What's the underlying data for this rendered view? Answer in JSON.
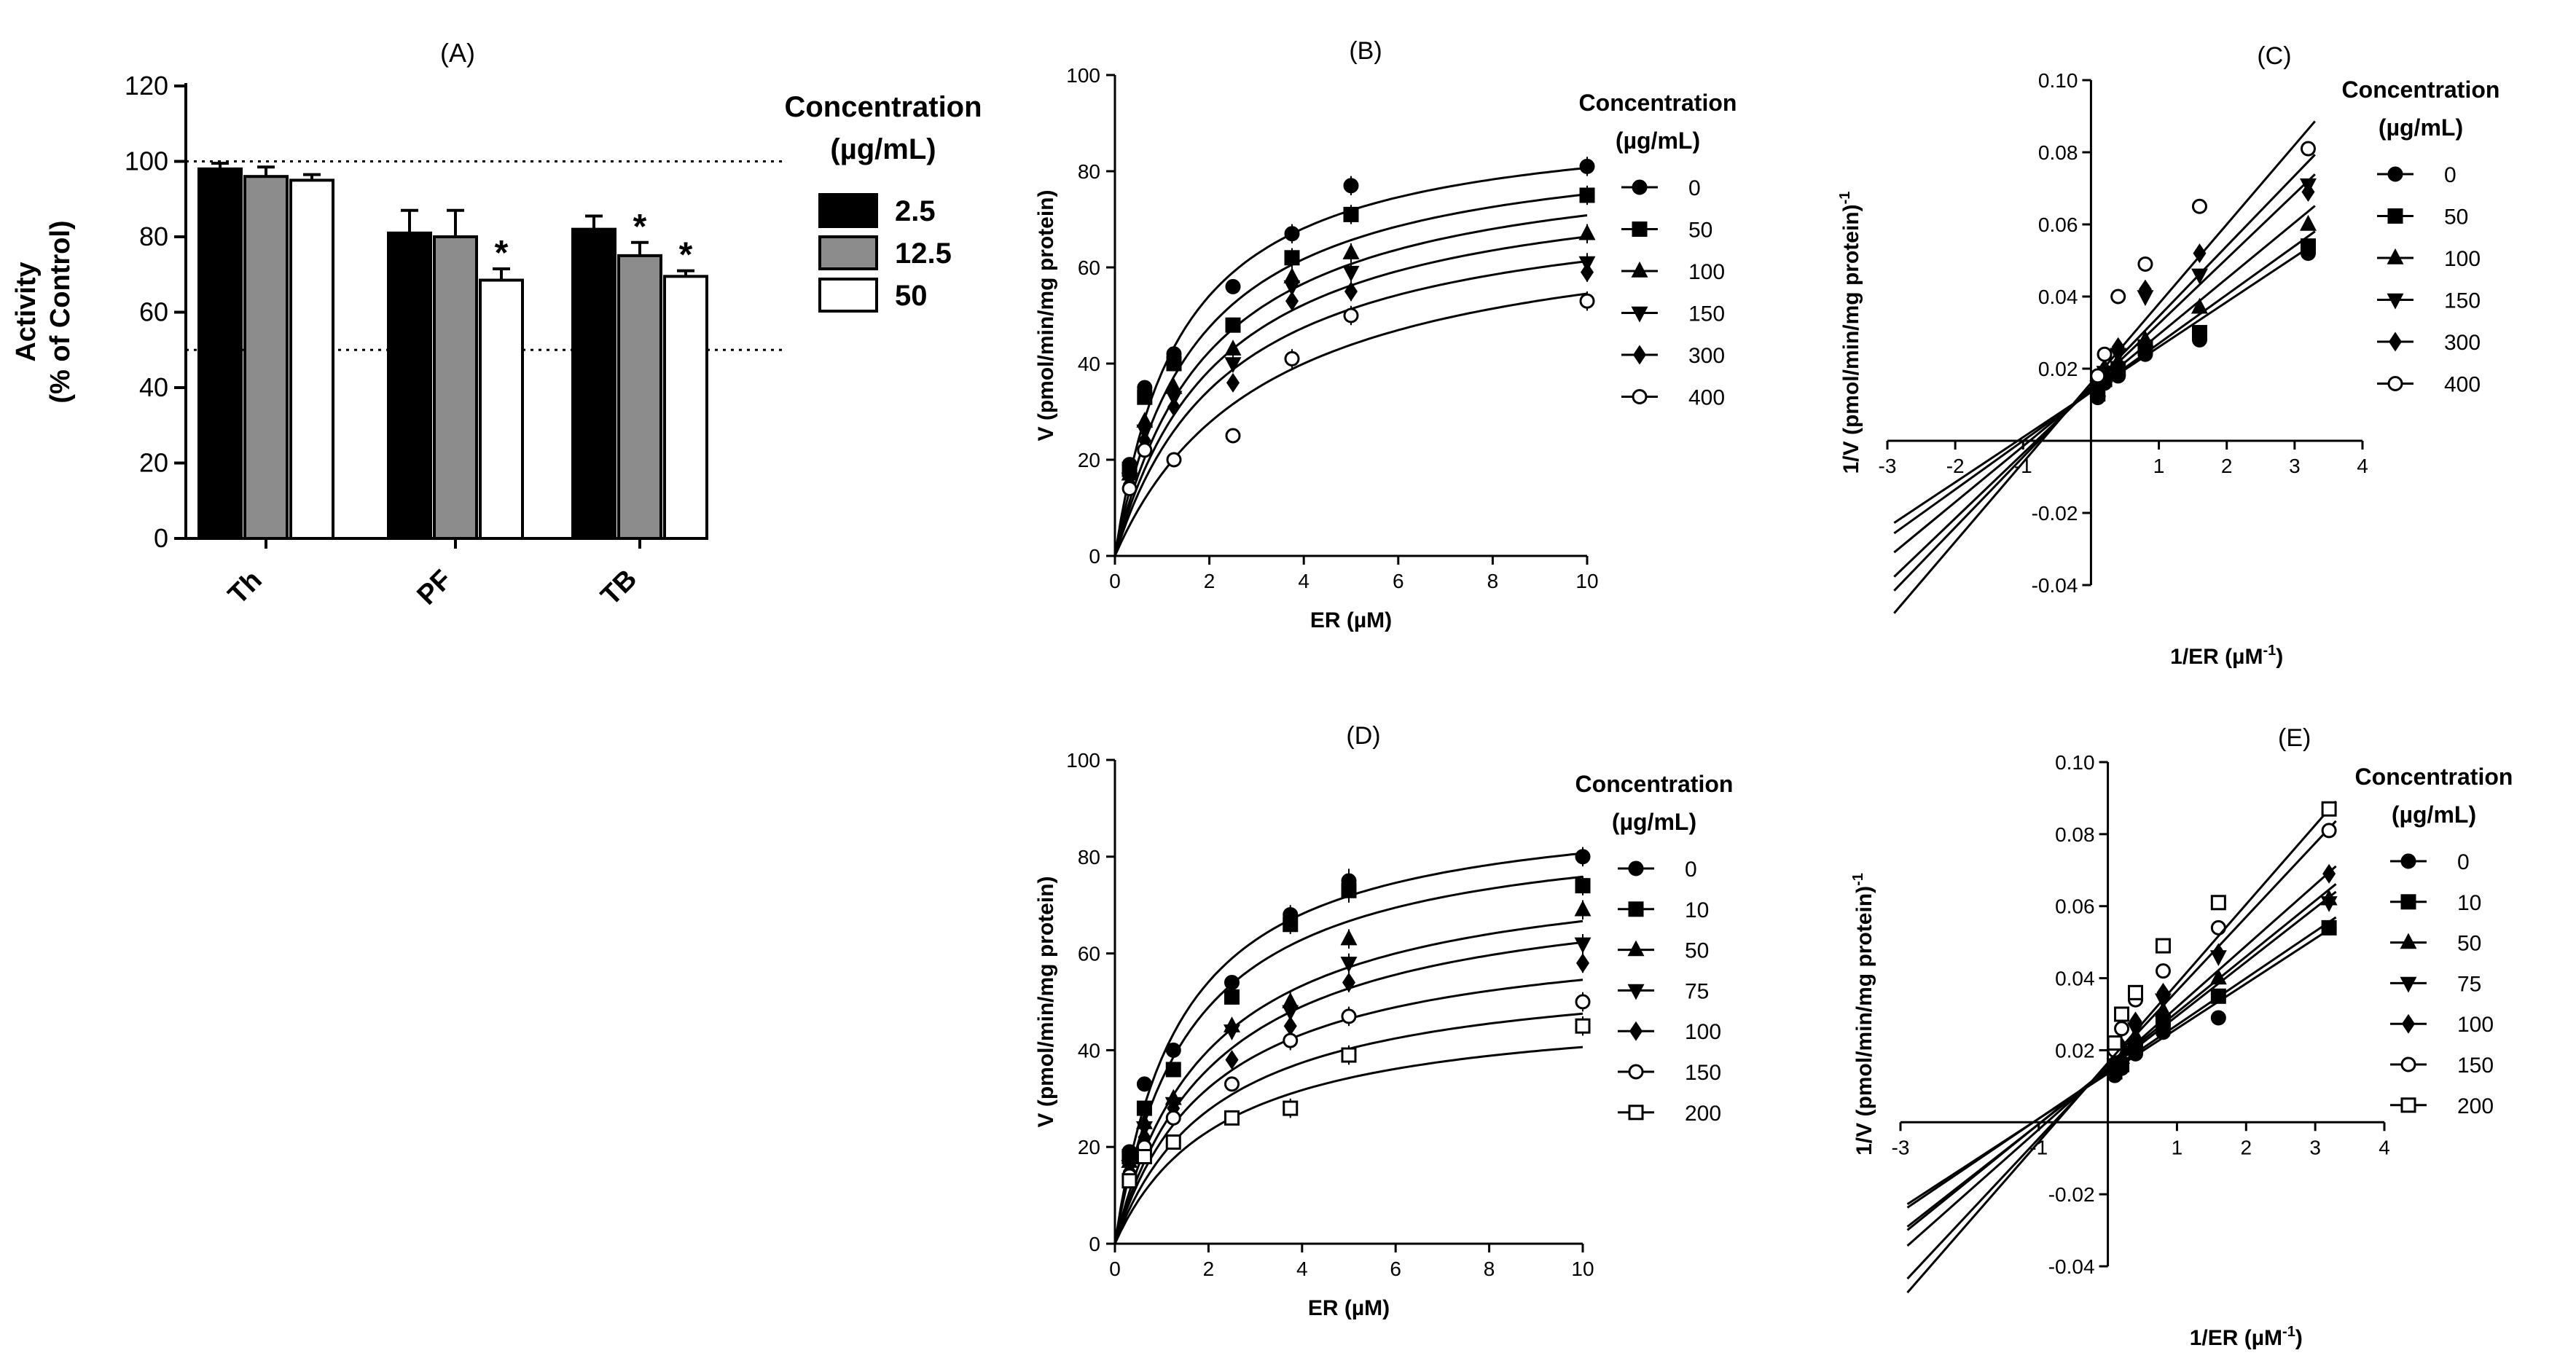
{
  "chart_data": [
    {
      "id": "A",
      "type": "bar",
      "title": "(A)",
      "ylabel_line1": "Activity",
      "ylabel_line2": "(% of Control)",
      "categories": [
        "Th",
        "PF",
        "TB"
      ],
      "ylim": [
        0,
        120
      ],
      "yticks": [
        0,
        20,
        40,
        60,
        80,
        100,
        120
      ],
      "reference_lines": [
        100,
        50
      ],
      "legend_title_line1": "Concentration",
      "legend_title_line2": "(µg/mL)",
      "series": [
        {
          "name": "2.5",
          "color": "#000000",
          "values": [
            98,
            81,
            82
          ],
          "errors": [
            1.5,
            6,
            3.5
          ],
          "significant": [
            false,
            false,
            false
          ]
        },
        {
          "name": "12.5",
          "color": "#8c8c8c",
          "values": [
            96,
            80,
            75
          ],
          "errors": [
            2.5,
            7,
            3.5
          ],
          "significant": [
            false,
            false,
            true
          ]
        },
        {
          "name": "50",
          "color": "#ffffff",
          "values": [
            95,
            68.5,
            69.5
          ],
          "errors": [
            1.5,
            3,
            1.5
          ],
          "significant": [
            false,
            true,
            true
          ]
        }
      ],
      "significance_marker": "*"
    },
    {
      "id": "B",
      "type": "scatter",
      "title": "(B)",
      "xlabel": "ER (µM)",
      "ylabel": "V (pmol/min/mg protein)",
      "xlim": [
        0,
        10
      ],
      "ylim": [
        0,
        100
      ],
      "xticks": [
        0,
        2,
        4,
        6,
        8,
        10
      ],
      "yticks": [
        0,
        20,
        40,
        60,
        80,
        100
      ],
      "x": [
        0.31,
        0.63,
        1.25,
        2.5,
        3.75,
        5,
        10
      ],
      "legend_title_line1": "Concentration",
      "legend_title_line2": "(µg/mL)",
      "series": [
        {
          "name": "0",
          "marker": "circle-filled",
          "values": [
            19,
            35,
            42,
            56,
            67,
            77,
            81
          ],
          "errors": [
            1,
            1,
            1.5,
            1.5,
            2,
            2,
            2
          ],
          "fit_vmax": 92,
          "fit_km": 1.4
        },
        {
          "name": "50",
          "marker": "square-filled",
          "values": [
            18,
            33,
            40,
            48,
            62,
            71,
            75
          ],
          "errors": [
            1,
            1,
            1.5,
            1.5,
            2,
            2,
            2
          ],
          "fit_vmax": 88,
          "fit_km": 1.7
        },
        {
          "name": "100",
          "marker": "triangle-up-filled",
          "values": [
            17,
            28,
            35,
            43,
            58,
            63,
            67
          ],
          "errors": [
            1,
            1,
            1.5,
            1.5,
            2,
            2,
            2
          ],
          "fit_vmax": 85,
          "fit_km": 2.0
        },
        {
          "name": "150",
          "marker": "triangle-down-filled",
          "values": [
            16,
            26,
            33,
            40,
            56,
            59,
            61
          ],
          "errors": [
            1,
            1,
            1.5,
            1.5,
            2,
            2,
            2
          ],
          "fit_vmax": 81,
          "fit_km": 2.2
        },
        {
          "name": "300",
          "marker": "diamond-filled",
          "values": [
            15,
            24,
            31,
            36,
            53,
            55,
            59
          ],
          "errors": [
            1,
            1,
            1.5,
            1.5,
            2,
            2,
            2
          ],
          "fit_vmax": 76,
          "fit_km": 2.4
        },
        {
          "name": "400",
          "marker": "circle-open",
          "values": [
            14,
            22,
            20,
            25,
            41,
            50,
            53
          ],
          "errors": [
            1,
            1,
            1.5,
            1.5,
            2,
            2,
            2
          ],
          "fit_vmax": 72,
          "fit_km": 3.2
        }
      ]
    },
    {
      "id": "C",
      "type": "line",
      "title": "(C)",
      "xlabel": "1/ER (µM",
      "xlabel_sup": "-1",
      "xlabel_end": ")",
      "ylabel": "1/V (pmol/min/mg protein)",
      "ylabel_sup": "-1",
      "xlim": [
        -3,
        4
      ],
      "ylim": [
        -0.04,
        0.1
      ],
      "xticks": [
        -3,
        -2,
        -1,
        1,
        2,
        3,
        4
      ],
      "yticks": [
        -0.04,
        -0.02,
        0.02,
        0.04,
        0.06,
        0.08,
        0.1
      ],
      "ytick_labels": [
        "-0.04",
        "-0.02",
        "0.02",
        "0.04",
        "0.06",
        "0.08",
        "0.10"
      ],
      "x": [
        0.1,
        0.2,
        0.4,
        0.8,
        1.6,
        3.2
      ],
      "legend_title_line1": "Concentration",
      "legend_title_line2": "(µg/mL)",
      "series": [
        {
          "name": "0",
          "marker": "circle-filled",
          "values": [
            0.012,
            0.016,
            0.018,
            0.024,
            0.028,
            0.052
          ],
          "slope": 0.0125,
          "intercept": 0.0135
        },
        {
          "name": "50",
          "marker": "square-filled",
          "values": [
            0.013,
            0.017,
            0.02,
            0.026,
            0.03,
            0.054
          ],
          "slope": 0.0135,
          "intercept": 0.0135
        },
        {
          "name": "100",
          "marker": "triangle-up-filled",
          "values": [
            0.014,
            0.018,
            0.022,
            0.028,
            0.037,
            0.06
          ],
          "slope": 0.0155,
          "intercept": 0.014
        },
        {
          "name": "150",
          "marker": "triangle-down-filled",
          "values": [
            0.015,
            0.019,
            0.024,
            0.04,
            0.046,
            0.071
          ],
          "slope": 0.018,
          "intercept": 0.0145
        },
        {
          "name": "300",
          "marker": "diamond-filled",
          "values": [
            0.016,
            0.02,
            0.026,
            0.042,
            0.052,
            0.069
          ],
          "slope": 0.0195,
          "intercept": 0.015
        },
        {
          "name": "400",
          "marker": "circle-open",
          "values": [
            0.018,
            0.024,
            0.04,
            0.049,
            0.065,
            0.081
          ],
          "slope": 0.022,
          "intercept": 0.016
        }
      ]
    },
    {
      "id": "D",
      "type": "scatter",
      "title": "(D)",
      "xlabel": "ER (µM)",
      "ylabel": "V (pmol/min/mg protein)",
      "xlim": [
        0,
        10
      ],
      "ylim": [
        0,
        100
      ],
      "xticks": [
        0,
        2,
        4,
        6,
        8,
        10
      ],
      "yticks": [
        0,
        20,
        40,
        60,
        80,
        100
      ],
      "x": [
        0.31,
        0.63,
        1.25,
        2.5,
        3.75,
        5,
        10
      ],
      "legend_title_line1": "Concentration",
      "legend_title_line2": "(µg/mL)",
      "series": [
        {
          "name": "0",
          "marker": "circle-filled",
          "values": [
            19,
            33,
            40,
            54,
            68,
            75,
            80
          ],
          "errors": [
            1,
            1,
            1.5,
            1.5,
            2,
            2.5,
            2
          ],
          "fit_vmax": 92,
          "fit_km": 1.4
        },
        {
          "name": "10",
          "marker": "square-filled",
          "values": [
            18,
            28,
            36,
            51,
            66,
            73,
            74
          ],
          "errors": [
            1,
            1,
            1.5,
            1.5,
            2,
            2.5,
            2
          ],
          "fit_vmax": 88,
          "fit_km": 1.6
        },
        {
          "name": "50",
          "marker": "triangle-up-filled",
          "values": [
            17,
            25,
            30,
            45,
            50,
            63,
            69
          ],
          "errors": [
            1,
            1,
            1.5,
            1.5,
            2,
            2,
            2
          ],
          "fit_vmax": 80,
          "fit_km": 2.0
        },
        {
          "name": "75",
          "marker": "triangle-down-filled",
          "values": [
            16,
            24,
            29,
            44,
            48,
            58,
            62
          ],
          "errors": [
            1,
            1,
            1.5,
            1.5,
            2,
            2,
            2
          ],
          "fit_vmax": 76,
          "fit_km": 2.2
        },
        {
          "name": "100",
          "marker": "diamond-filled",
          "values": [
            15,
            22,
            28,
            38,
            45,
            54,
            58
          ],
          "errors": [
            1,
            1,
            1.5,
            1.5,
            2,
            2,
            2
          ],
          "fit_vmax": 66,
          "fit_km": 2.1
        },
        {
          "name": "150",
          "marker": "circle-open",
          "values": [
            14,
            20,
            26,
            33,
            42,
            47,
            50
          ],
          "errors": [
            1,
            1,
            1.5,
            1.5,
            2,
            2,
            2
          ],
          "fit_vmax": 58,
          "fit_km": 2.2
        },
        {
          "name": "200",
          "marker": "square-open",
          "values": [
            13,
            18,
            21,
            26,
            28,
            39,
            45
          ],
          "errors": [
            1,
            1,
            1.5,
            1.5,
            2,
            2,
            2
          ],
          "fit_vmax": 50,
          "fit_km": 2.3
        }
      ]
    },
    {
      "id": "E",
      "type": "line",
      "title": "(E)",
      "xlabel": "1/ER (µM",
      "xlabel_sup": "-1",
      "xlabel_end": ")",
      "ylabel": "1/V (pmol/min/mg protein)",
      "ylabel_sup": "-1",
      "xlim": [
        -3,
        4
      ],
      "ylim": [
        -0.04,
        0.1
      ],
      "xticks": [
        -3,
        -1,
        1,
        2,
        3,
        4
      ],
      "yticks": [
        -0.04,
        -0.02,
        0.02,
        0.04,
        0.06,
        0.08,
        0.1
      ],
      "ytick_labels": [
        "-0.04",
        "-0.02",
        "0.02",
        "0.04",
        "0.06",
        "0.08",
        "0.10"
      ],
      "x": [
        0.1,
        0.2,
        0.4,
        0.8,
        1.6,
        3.2
      ],
      "legend_title_line1": "Concentration",
      "legend_title_line2": "(µg/mL)",
      "series": [
        {
          "name": "0",
          "marker": "circle-filled",
          "values": [
            0.013,
            0.015,
            0.019,
            0.025,
            0.029,
            0.054
          ],
          "slope": 0.0125,
          "intercept": 0.0135
        },
        {
          "name": "10",
          "marker": "square-filled",
          "values": [
            0.014,
            0.016,
            0.021,
            0.028,
            0.035,
            0.054
          ],
          "slope": 0.013,
          "intercept": 0.014
        },
        {
          "name": "50",
          "marker": "triangle-up-filled",
          "values": [
            0.015,
            0.018,
            0.024,
            0.031,
            0.04,
            0.062
          ],
          "slope": 0.015,
          "intercept": 0.0145
        },
        {
          "name": "75",
          "marker": "triangle-down-filled",
          "values": [
            0.016,
            0.019,
            0.026,
            0.034,
            0.046,
            0.061
          ],
          "slope": 0.0155,
          "intercept": 0.015
        },
        {
          "name": "100",
          "marker": "diamond-filled",
          "values": [
            0.017,
            0.021,
            0.028,
            0.036,
            0.047,
            0.069
          ],
          "slope": 0.017,
          "intercept": 0.015
        },
        {
          "name": "150",
          "marker": "circle-open",
          "values": [
            0.02,
            0.026,
            0.034,
            0.042,
            0.054,
            0.081
          ],
          "slope": 0.0205,
          "intercept": 0.016
        },
        {
          "name": "200",
          "marker": "square-open",
          "values": [
            0.022,
            0.03,
            0.036,
            0.049,
            0.061,
            0.087
          ],
          "slope": 0.022,
          "intercept": 0.0165
        }
      ]
    }
  ]
}
